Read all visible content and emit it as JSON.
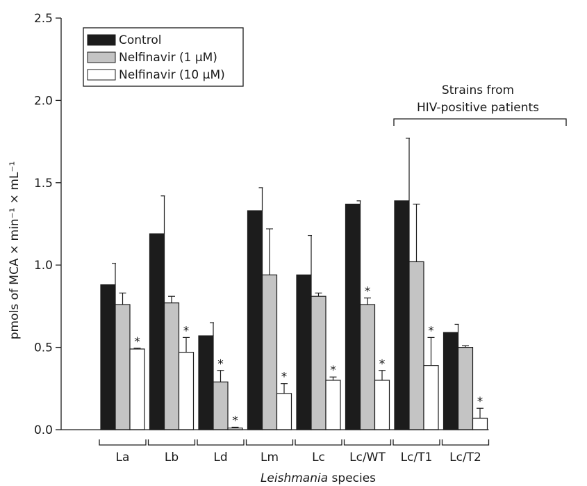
{
  "chart_data": {
    "type": "bar",
    "xlabel_italic": "Leishmania",
    "xlabel_rest": " species",
    "ylabel": "pmols of MCA × min⁻¹ × mL⁻¹",
    "ylim": [
      0,
      2.5
    ],
    "yticks": [
      "0.0",
      "0.5",
      "1.0",
      "1.5",
      "2.0",
      "2.5"
    ],
    "ytick_values": [
      0,
      0.5,
      1.0,
      1.5,
      2.0,
      2.5
    ],
    "categories": [
      "La",
      "Lb",
      "Ld",
      "Lm",
      "Lc",
      "Lc/WT",
      "Lc/T1",
      "Lc/T2"
    ],
    "series": [
      {
        "name": "Control",
        "color": "#1c1c1c",
        "values": [
          0.88,
          1.19,
          0.57,
          1.33,
          0.94,
          1.37,
          1.39,
          0.59
        ],
        "errors": [
          0.13,
          0.23,
          0.08,
          0.14,
          0.24,
          0.02,
          0.38,
          0.05
        ],
        "significant": [
          false,
          false,
          false,
          false,
          false,
          false,
          false,
          false
        ]
      },
      {
        "name": "Nelfinavir (1 μM)",
        "color": "#c4c4c4",
        "values": [
          0.76,
          0.77,
          0.29,
          0.94,
          0.81,
          0.76,
          1.02,
          0.5
        ],
        "errors": [
          0.07,
          0.04,
          0.07,
          0.28,
          0.02,
          0.04,
          0.35,
          0.01
        ],
        "significant": [
          false,
          false,
          true,
          false,
          false,
          true,
          false,
          false
        ]
      },
      {
        "name": "Nelfinavir (10 μM)",
        "color": "#ffffff",
        "values": [
          0.49,
          0.47,
          0.01,
          0.22,
          0.3,
          0.3,
          0.39,
          0.07
        ],
        "errors": [
          0.005,
          0.09,
          0.005,
          0.06,
          0.02,
          0.06,
          0.17,
          0.06
        ],
        "significant": [
          true,
          true,
          true,
          true,
          true,
          true,
          true,
          true
        ]
      }
    ],
    "significance_marker": "*",
    "group_annotation": {
      "lines": [
        "Strains from",
        "HIV-positive patients"
      ],
      "spans_categories": [
        "Lc/WT",
        "Lc/T1",
        "Lc/T2"
      ]
    },
    "legend_position": "top-left",
    "grid": false
  }
}
